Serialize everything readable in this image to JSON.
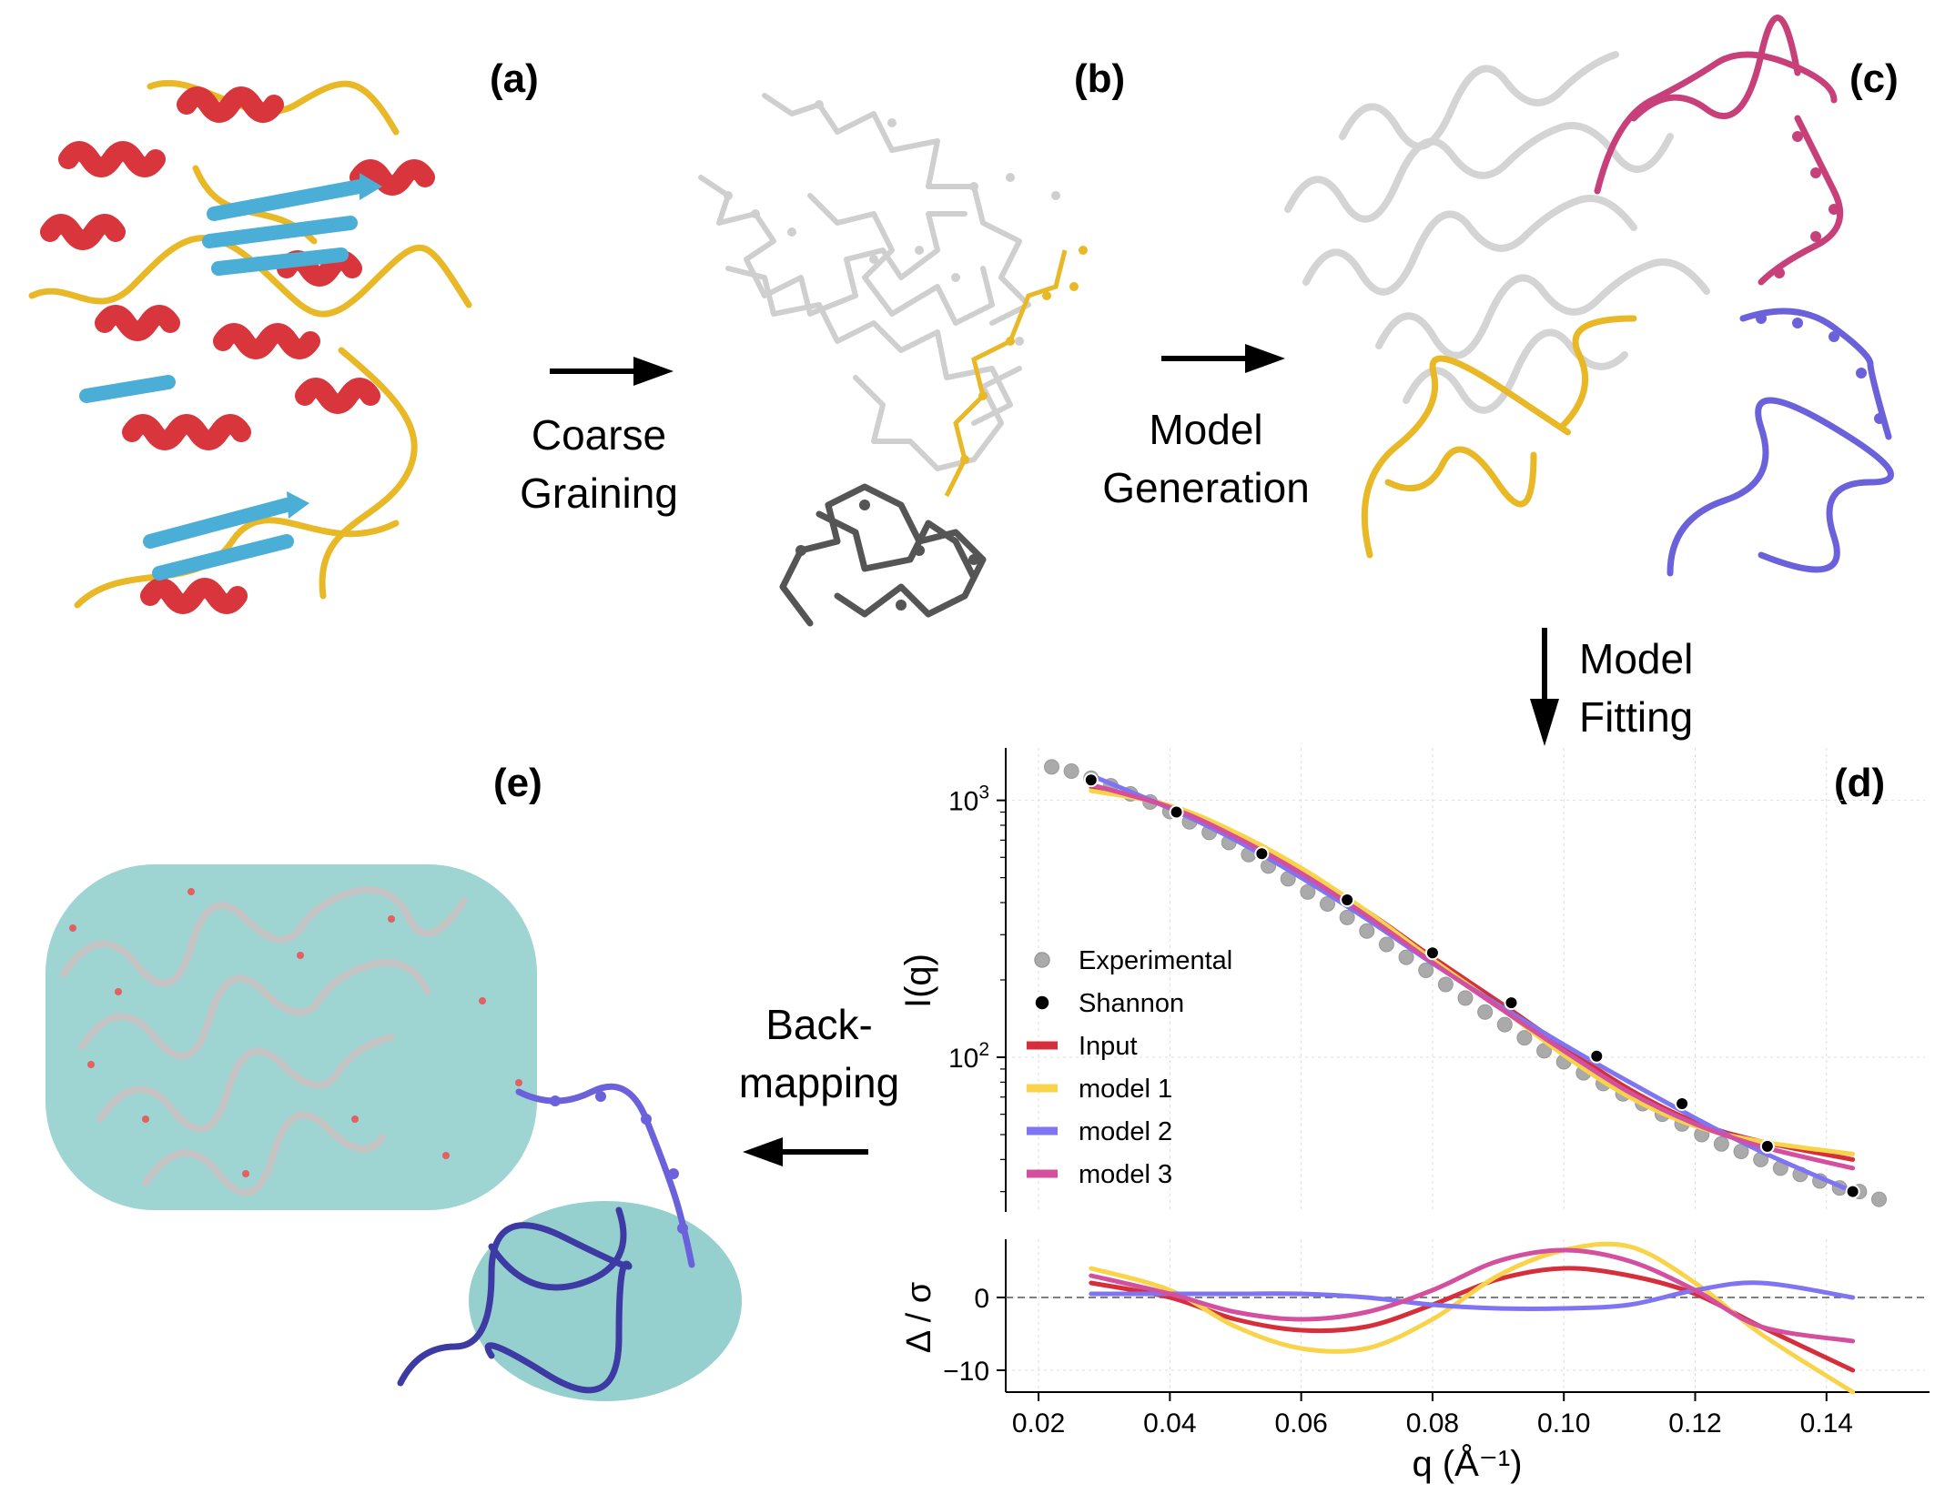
{
  "panels": {
    "a": "(a)",
    "b": "(b)",
    "c": "(c)",
    "d": "(d)",
    "e": "(e)"
  },
  "steps": {
    "coarse": [
      "Coarse",
      "Graining"
    ],
    "model_gen": [
      "Model",
      "Generation"
    ],
    "model_fit": [
      "Model",
      "Fitting"
    ],
    "backmap": [
      "Back-",
      "mapping"
    ]
  },
  "colors": {
    "helix": "#d8363c",
    "sheet": "#4aaed6",
    "coil": "#e9b827",
    "cg_light": "#cfcfcf",
    "cg_dark": "#555555",
    "linker_magenta": "#c8407a",
    "linker_blue": "#6b62db",
    "atoms_cyan": "#4fb1ad",
    "atoms_red": "#e06262",
    "experimental": "#aaaaaa",
    "shannon": "#000000",
    "input": "#d62f3c",
    "model1": "#f9d34a",
    "model2": "#7f75f2",
    "model3": "#d44f9d"
  },
  "icons": {
    "arrow_right": "arrow-right-icon",
    "arrow_down": "arrow-down-icon",
    "arrow_left": "arrow-left-icon"
  },
  "chart_data": {
    "type": "line",
    "top": {
      "ylabel": "I(q)",
      "yscale": "log",
      "ylim": [
        25,
        1600
      ],
      "yticks": [
        100,
        1000
      ],
      "ytick_labels": [
        "10^2",
        "10^3"
      ],
      "legend_placement": "center-left",
      "series": [
        {
          "name": "Experimental",
          "kind": "scatter",
          "x": [
            0.022,
            0.025,
            0.028,
            0.031,
            0.034,
            0.037,
            0.04,
            0.043,
            0.046,
            0.049,
            0.052,
            0.055,
            0.058,
            0.061,
            0.064,
            0.067,
            0.07,
            0.073,
            0.076,
            0.079,
            0.082,
            0.085,
            0.088,
            0.091,
            0.094,
            0.097,
            0.1,
            0.103,
            0.106,
            0.109,
            0.112,
            0.115,
            0.118,
            0.121,
            0.124,
            0.127,
            0.13,
            0.133,
            0.136,
            0.139,
            0.142,
            0.145,
            0.148
          ],
          "y": [
            1350,
            1300,
            1220,
            1140,
            1060,
            985,
            905,
            825,
            750,
            685,
            615,
            555,
            495,
            440,
            395,
            350,
            310,
            275,
            245,
            218,
            192,
            170,
            150,
            134,
            119,
            106,
            96,
            87,
            79,
            72,
            66,
            60,
            55,
            50,
            46,
            43,
            40,
            37,
            35,
            33,
            31,
            30,
            28
          ]
        },
        {
          "name": "Shannon",
          "kind": "scatter",
          "x": [
            0.028,
            0.041,
            0.054,
            0.067,
            0.08,
            0.092,
            0.105,
            0.118,
            0.131,
            0.144
          ],
          "y": [
            1200,
            900,
            620,
            410,
            255,
            163,
            101,
            66,
            45,
            30
          ]
        },
        {
          "name": "Input",
          "kind": "line",
          "x": [
            0.028,
            0.04,
            0.05,
            0.06,
            0.07,
            0.08,
            0.09,
            0.1,
            0.11,
            0.12,
            0.13,
            0.144
          ],
          "y": [
            1130,
            950,
            730,
            530,
            370,
            245,
            165,
            110,
            75,
            56,
            47,
            40
          ]
        },
        {
          "name": "model 1",
          "kind": "line",
          "x": [
            0.028,
            0.04,
            0.05,
            0.06,
            0.07,
            0.08,
            0.09,
            0.1,
            0.11,
            0.12,
            0.13,
            0.144
          ],
          "y": [
            1090,
            955,
            750,
            545,
            370,
            240,
            158,
            102,
            70,
            54,
            47,
            42
          ]
        },
        {
          "name": "model 2",
          "kind": "line",
          "x": [
            0.028,
            0.04,
            0.05,
            0.06,
            0.07,
            0.08,
            0.09,
            0.1,
            0.11,
            0.12,
            0.13,
            0.144
          ],
          "y": [
            1250,
            930,
            700,
            500,
            345,
            232,
            160,
            112,
            80,
            58,
            43,
            30
          ]
        },
        {
          "name": "model 3",
          "kind": "line",
          "x": [
            0.028,
            0.04,
            0.05,
            0.06,
            0.07,
            0.08,
            0.09,
            0.1,
            0.11,
            0.12,
            0.13,
            0.144
          ],
          "y": [
            1150,
            940,
            720,
            520,
            355,
            234,
            157,
            106,
            73,
            55,
            45,
            37
          ]
        }
      ]
    },
    "bottom": {
      "ylabel": "Δ / σ",
      "ylim": [
        -13,
        8
      ],
      "yticks": [
        -10,
        0
      ],
      "ytick_labels": [
        "−10",
        "0"
      ],
      "xlabel": "q (Å⁻¹)",
      "xlim": [
        0.015,
        0.155
      ],
      "xticks": [
        0.02,
        0.04,
        0.06,
        0.08,
        0.1,
        0.12,
        0.14
      ],
      "xtick_labels": [
        "0.02",
        "0.04",
        "0.06",
        "0.08",
        "0.10",
        "0.12",
        "0.14"
      ],
      "reference_line": 0,
      "series": [
        {
          "name": "Input",
          "x": [
            0.028,
            0.04,
            0.05,
            0.06,
            0.07,
            0.08,
            0.09,
            0.1,
            0.11,
            0.12,
            0.13,
            0.144
          ],
          "y": [
            2,
            0,
            -3,
            -4.5,
            -4,
            -1,
            2.5,
            4,
            3,
            0.5,
            -4,
            -10
          ]
        },
        {
          "name": "model 1",
          "x": [
            0.028,
            0.04,
            0.05,
            0.06,
            0.07,
            0.08,
            0.09,
            0.1,
            0.11,
            0.12,
            0.13,
            0.144
          ],
          "y": [
            4,
            1,
            -4,
            -7,
            -7,
            -3,
            3,
            6.5,
            7,
            2,
            -5,
            -13
          ]
        },
        {
          "name": "model 2",
          "x": [
            0.028,
            0.04,
            0.05,
            0.06,
            0.07,
            0.08,
            0.09,
            0.1,
            0.11,
            0.12,
            0.13,
            0.144
          ],
          "y": [
            0.5,
            0.5,
            0.5,
            0.5,
            0,
            -1,
            -1.5,
            -1.5,
            -1,
            1,
            2,
            0
          ]
        },
        {
          "name": "model 3",
          "x": [
            0.028,
            0.04,
            0.05,
            0.06,
            0.07,
            0.08,
            0.09,
            0.1,
            0.11,
            0.12,
            0.13,
            0.144
          ],
          "y": [
            3,
            0.5,
            -2,
            -3,
            -2,
            1,
            5,
            6.5,
            5,
            1,
            -4,
            -6
          ]
        }
      ]
    }
  }
}
